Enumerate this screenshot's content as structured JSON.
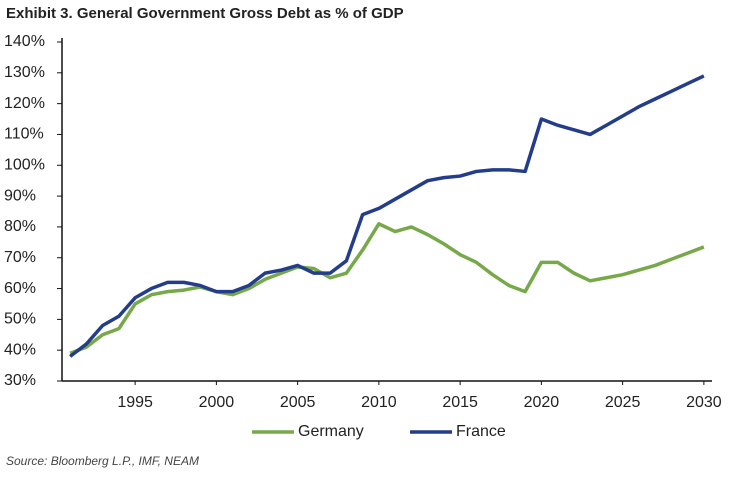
{
  "chart_data": {
    "type": "line",
    "title": "Exhibit 3. General Government Gross Debt as % of GDP",
    "note": "Source: Bloomberg L.P., IMF, NEAM",
    "x": [
      1991,
      1992,
      1993,
      1994,
      1995,
      1996,
      1997,
      1998,
      1999,
      2000,
      2001,
      2002,
      2003,
      2004,
      2005,
      2006,
      2007,
      2008,
      2009,
      2010,
      2011,
      2012,
      2013,
      2014,
      2015,
      2016,
      2017,
      2018,
      2019,
      2020,
      2021,
      2022,
      2023,
      2024,
      2025,
      2026,
      2027,
      2028,
      2029,
      2030
    ],
    "series": [
      {
        "name": "Germany",
        "color": "#77a84a",
        "values": [
          39,
          41,
          45,
          47,
          55,
          58,
          59,
          59.5,
          60.5,
          59,
          58,
          60,
          63,
          65,
          67,
          66.5,
          63.5,
          65,
          72.5,
          81,
          78.5,
          80,
          77.5,
          74.5,
          71,
          68.5,
          64.5,
          61,
          59,
          68.5,
          68.5,
          65,
          62.5,
          63.5,
          64.5,
          66,
          67.5,
          69.5,
          71.5,
          73.5
        ]
      },
      {
        "name": "France",
        "color": "#233d8a",
        "values": [
          38,
          42,
          48,
          51,
          57,
          60,
          62,
          62,
          61,
          59,
          59,
          61,
          65,
          66,
          67.5,
          65,
          65,
          69,
          84,
          86,
          89,
          92,
          95,
          96,
          96.5,
          98,
          98.5,
          98.5,
          98,
          115,
          113,
          111.5,
          110,
          113,
          116,
          119,
          121.5,
          124,
          126.5,
          129
        ]
      }
    ],
    "xlim": [
      1990.5,
      2030.5
    ],
    "xticks": [
      1995,
      2000,
      2005,
      2010,
      2015,
      2020,
      2025,
      2030
    ],
    "ylim": [
      30,
      140
    ],
    "yticks": [
      {
        "value": 30,
        "label": "30%"
      },
      {
        "value": 40,
        "label": "40%"
      },
      {
        "value": 50,
        "label": "50%"
      },
      {
        "value": 60,
        "label": "60%"
      },
      {
        "value": 70,
        "label": "70%"
      },
      {
        "value": 80,
        "label": "80%"
      },
      {
        "value": 90,
        "label": "90%"
      },
      {
        "value": 100,
        "label": "100%"
      },
      {
        "value": 110,
        "label": "110%"
      },
      {
        "value": 120,
        "label": "120%"
      },
      {
        "value": 130,
        "label": "130%"
      },
      {
        "value": 140,
        "label": "140%"
      }
    ],
    "legend": "bottom"
  }
}
